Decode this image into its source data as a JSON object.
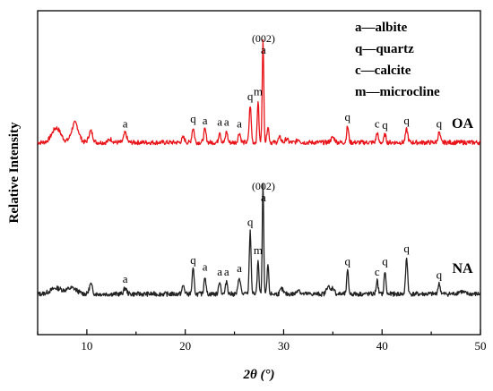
{
  "chart_data": {
    "type": "line",
    "xlabel": "2θ (°)",
    "ylabel": "Relative Intensity",
    "xlim": [
      5,
      50
    ],
    "xticks": [
      10,
      20,
      30,
      40,
      50
    ],
    "x_tick_labels": [
      "10",
      "20",
      "30",
      "40",
      "50"
    ],
    "grid": false,
    "legend_position": "top-right",
    "legend": [
      "a—albite",
      "q—quartz",
      "c—calcite",
      "m—microcline"
    ],
    "series": [
      {
        "name": "OA",
        "color": "#e8141a",
        "baseline": 0.6,
        "peaks": [
          {
            "x": 6.9,
            "h": 0.9,
            "w": 0.45
          },
          {
            "x": 8.8,
            "h": 1.2,
            "w": 0.35
          },
          {
            "x": 10.4,
            "h": 0.7,
            "w": 0.2
          },
          {
            "x": 12.4,
            "h": 0.2,
            "w": 0.2
          },
          {
            "x": 13.9,
            "h": 0.6,
            "w": 0.15
          },
          {
            "x": 19.8,
            "h": 0.3,
            "w": 0.15
          },
          {
            "x": 20.8,
            "h": 0.9,
            "w": 0.12
          },
          {
            "x": 22.0,
            "h": 0.8,
            "w": 0.12
          },
          {
            "x": 23.5,
            "h": 0.7,
            "w": 0.1
          },
          {
            "x": 24.2,
            "h": 0.7,
            "w": 0.1
          },
          {
            "x": 25.5,
            "h": 0.6,
            "w": 0.12
          },
          {
            "x": 26.6,
            "h": 2.3,
            "w": 0.1
          },
          {
            "x": 27.4,
            "h": 2.6,
            "w": 0.08
          },
          {
            "x": 27.9,
            "h": 6.3,
            "w": 0.08
          },
          {
            "x": 28.4,
            "h": 1.0,
            "w": 0.1
          },
          {
            "x": 29.6,
            "h": 0.3,
            "w": 0.15
          },
          {
            "x": 30.3,
            "h": 0.25,
            "w": 0.12
          },
          {
            "x": 31.5,
            "h": 0.2,
            "w": 0.15
          },
          {
            "x": 35.0,
            "h": 0.3,
            "w": 0.2
          },
          {
            "x": 36.5,
            "h": 1.0,
            "w": 0.1
          },
          {
            "x": 39.5,
            "h": 0.6,
            "w": 0.1
          },
          {
            "x": 40.3,
            "h": 0.5,
            "w": 0.1
          },
          {
            "x": 42.5,
            "h": 0.8,
            "w": 0.12
          },
          {
            "x": 45.8,
            "h": 0.6,
            "w": 0.12
          }
        ],
        "peak_labels": [
          {
            "x": 13.9,
            "text": "a"
          },
          {
            "x": 20.8,
            "text": "q"
          },
          {
            "x": 22.0,
            "text": "a"
          },
          {
            "x": 23.5,
            "text": "a"
          },
          {
            "x": 24.2,
            "text": "a"
          },
          {
            "x": 25.5,
            "text": "a"
          },
          {
            "x": 26.6,
            "text": "q"
          },
          {
            "x": 27.4,
            "text": "m"
          },
          {
            "x": 27.95,
            "text": "a"
          },
          {
            "x": 27.95,
            "text": "(002)"
          },
          {
            "x": 36.5,
            "text": "q"
          },
          {
            "x": 39.5,
            "text": "c"
          },
          {
            "x": 40.3,
            "text": "q"
          },
          {
            "x": 42.5,
            "text": "q"
          },
          {
            "x": 45.8,
            "text": "q"
          }
        ]
      },
      {
        "name": "NA",
        "color": "#222222",
        "baseline": 0.4,
        "peaks": [
          {
            "x": 6.9,
            "h": 0.35,
            "w": 0.6
          },
          {
            "x": 8.5,
            "h": 0.35,
            "w": 0.5
          },
          {
            "x": 10.4,
            "h": 0.6,
            "w": 0.15
          },
          {
            "x": 13.9,
            "h": 0.35,
            "w": 0.15
          },
          {
            "x": 19.8,
            "h": 0.5,
            "w": 0.12
          },
          {
            "x": 20.8,
            "h": 1.5,
            "w": 0.1
          },
          {
            "x": 22.0,
            "h": 1.1,
            "w": 0.1
          },
          {
            "x": 23.5,
            "h": 0.8,
            "w": 0.1
          },
          {
            "x": 24.2,
            "h": 0.8,
            "w": 0.1
          },
          {
            "x": 25.5,
            "h": 1.0,
            "w": 0.12
          },
          {
            "x": 26.6,
            "h": 3.8,
            "w": 0.09
          },
          {
            "x": 27.4,
            "h": 2.1,
            "w": 0.08
          },
          {
            "x": 27.9,
            "h": 6.8,
            "w": 0.07
          },
          {
            "x": 28.4,
            "h": 1.8,
            "w": 0.08
          },
          {
            "x": 29.8,
            "h": 0.3,
            "w": 0.15
          },
          {
            "x": 31.5,
            "h": 0.3,
            "w": 0.15
          },
          {
            "x": 34.5,
            "h": 0.5,
            "w": 0.15
          },
          {
            "x": 35.0,
            "h": 0.4,
            "w": 0.15
          },
          {
            "x": 36.5,
            "h": 1.4,
            "w": 0.09
          },
          {
            "x": 39.5,
            "h": 0.8,
            "w": 0.1
          },
          {
            "x": 40.3,
            "h": 1.4,
            "w": 0.09
          },
          {
            "x": 42.5,
            "h": 2.2,
            "w": 0.1
          },
          {
            "x": 45.8,
            "h": 0.6,
            "w": 0.12
          },
          {
            "x": 48.0,
            "h": 0.15,
            "w": 0.3
          }
        ],
        "peak_labels": [
          {
            "x": 13.9,
            "text": "a"
          },
          {
            "x": 20.8,
            "text": "q"
          },
          {
            "x": 22.0,
            "text": "a"
          },
          {
            "x": 23.5,
            "text": "a"
          },
          {
            "x": 24.2,
            "text": "a"
          },
          {
            "x": 25.5,
            "text": "a"
          },
          {
            "x": 26.6,
            "text": "q"
          },
          {
            "x": 27.4,
            "text": "m"
          },
          {
            "x": 27.95,
            "text": "a"
          },
          {
            "x": 27.95,
            "text": "(002)"
          },
          {
            "x": 36.5,
            "text": "q"
          },
          {
            "x": 39.5,
            "text": "c"
          },
          {
            "x": 40.3,
            "text": "q"
          },
          {
            "x": 42.5,
            "text": "q"
          },
          {
            "x": 45.8,
            "text": "q"
          }
        ]
      }
    ]
  }
}
